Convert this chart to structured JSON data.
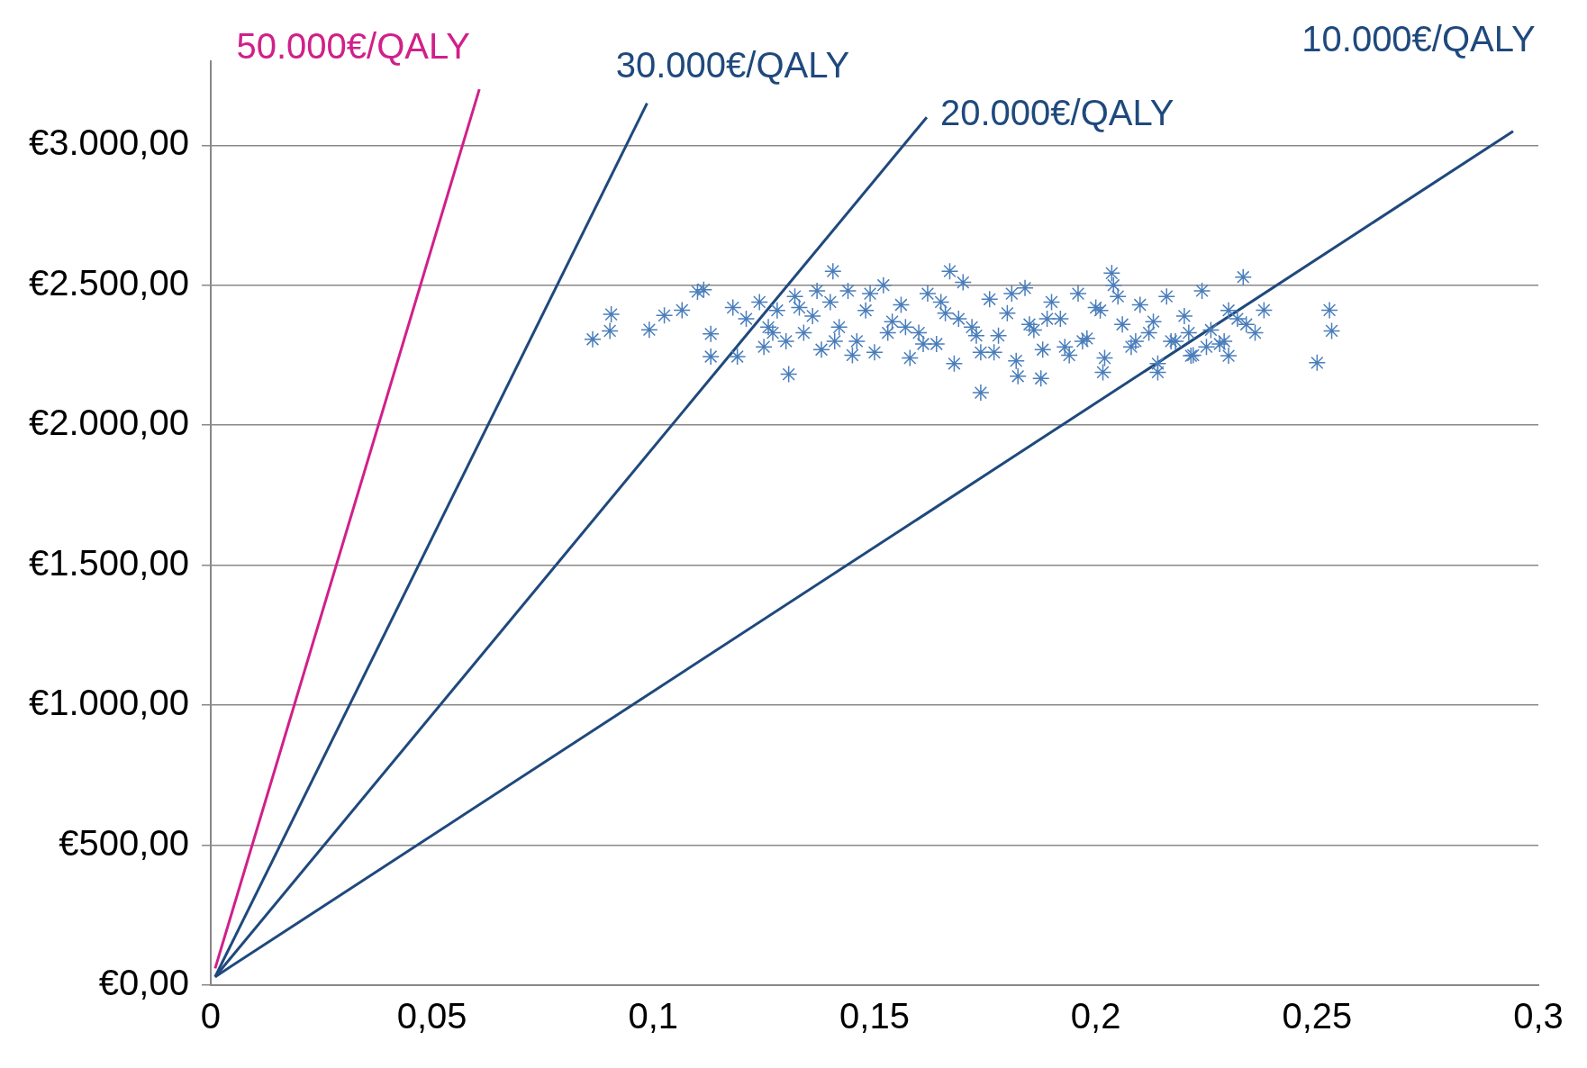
{
  "chart_data": {
    "type": "scatter",
    "xlim": [
      0,
      0.3
    ],
    "ylim": [
      0,
      3300
    ],
    "xticks": [
      0,
      {
        "value": 0.05,
        "label": "0,05"
      },
      {
        "value": 0.1,
        "label": "0,1"
      },
      {
        "value": 0.15,
        "label": "0,15"
      },
      {
        "value": 0.2,
        "label": "0,2"
      },
      {
        "value": 0.25,
        "label": "0,25"
      },
      {
        "value": 0.3,
        "label": "0,3"
      }
    ],
    "yticks": [
      {
        "value": 0,
        "label": "€0,00"
      },
      {
        "value": 500,
        "label": "€500,00"
      },
      {
        "value": 1000,
        "label": "€1.000,00"
      },
      {
        "value": 1500,
        "label": "€1.500,00"
      },
      {
        "value": 2000,
        "label": "€2.000,00"
      },
      {
        "value": 2500,
        "label": "€2.500,00"
      },
      {
        "value": 3000,
        "label": "€3.000,00"
      }
    ],
    "grid": "y",
    "legend": false,
    "series": [
      {
        "color": "#4a7ebb",
        "marker": "cross",
        "x": [
          0.0863,
          0.0905,
          0.0902,
          0.0991,
          0.1025,
          0.1065,
          0.11,
          0.1114,
          0.113,
          0.113,
          0.119,
          0.1306,
          0.174,
          0.1876,
          0.1824,
          0.2016,
          0.214,
          0.2215,
          0.23,
          0.2333,
          0.2528,
          0.2533,
          0.25,
          0.2036,
          0.1406,
          0.167,
          0.238,
          0.236,
          0.118,
          0.121,
          0.124,
          0.126,
          0.128,
          0.13,
          0.132,
          0.134,
          0.136,
          0.138,
          0.14,
          0.142,
          0.144,
          0.146,
          0.148,
          0.15,
          0.152,
          0.154,
          0.156,
          0.158,
          0.16,
          0.162,
          0.164,
          0.166,
          0.168,
          0.17,
          0.172,
          0.174,
          0.176,
          0.178,
          0.18,
          0.182,
          0.184,
          0.186,
          0.188,
          0.19,
          0.192,
          0.194,
          0.196,
          0.198,
          0.2,
          0.202,
          0.204,
          0.206,
          0.208,
          0.21,
          0.212,
          0.214,
          0.216,
          0.218,
          0.22,
          0.222,
          0.224,
          0.226,
          0.228,
          0.23,
          0.125,
          0.133,
          0.141,
          0.149,
          0.157,
          0.165,
          0.173,
          0.181,
          0.189,
          0.197,
          0.205,
          0.213,
          0.221,
          0.229,
          0.137,
          0.153,
          0.169,
          0.185,
          0.201,
          0.217,
          0.127,
          0.145,
          0.161,
          0.177,
          0.193,
          0.209,
          0.225,
          0.232,
          0.234
        ],
        "values": [
          2307,
          2396,
          2337,
          2341,
          2392,
          2411,
          2477,
          2484,
          2326,
          2245,
          2245,
          2182,
          2116,
          2167,
          2175,
          2189,
          2189,
          2248,
          2248,
          2529,
          2411,
          2337,
          2223,
          2543,
          2550,
          2550,
          2411,
          2330,
          2420,
          2380,
          2440,
          2350,
          2410,
          2300,
          2460,
          2330,
          2390,
          2270,
          2440,
          2350,
          2480,
          2300,
          2410,
          2260,
          2500,
          2370,
          2430,
          2240,
          2330,
          2470,
          2290,
          2400,
          2220,
          2510,
          2350,
          2260,
          2450,
          2320,
          2400,
          2230,
          2490,
          2340,
          2270,
          2440,
          2380,
          2250,
          2470,
          2310,
          2420,
          2240,
          2500,
          2360,
          2280,
          2430,
          2330,
          2220,
          2460,
          2300,
          2390,
          2250,
          2480,
          2340,
          2290,
          2410,
          2280,
          2420,
          2300,
          2470,
          2350,
          2440,
          2320,
          2470,
          2380,
          2300,
          2460,
          2370,
          2330,
          2300,
          2480,
          2330,
          2380,
          2360,
          2410,
          2300,
          2330,
          2250,
          2290,
          2260,
          2280,
          2300,
          2280,
          2380,
          2360
        ]
      },
      {
        "type": "line",
        "name": "50.000€/QALY",
        "color": "#d0208a",
        "marker": "none",
        "x": [
          0.001,
          0.0607
        ],
        "values": [
          60,
          3200
        ]
      },
      {
        "type": "line",
        "name": "30.000€/QALY",
        "color": "#1f497d",
        "marker": "none",
        "x": [
          0.001,
          0.0986
        ],
        "values": [
          30,
          3150
        ]
      },
      {
        "type": "line",
        "name": "20.000€/QALY",
        "color": "#1f497d",
        "marker": "none",
        "x": [
          0.001,
          0.1618
        ],
        "values": [
          30,
          3100
        ]
      },
      {
        "type": "line",
        "name": "10.000€/QALY",
        "color": "#1f497d",
        "marker": "none",
        "x": [
          0.001,
          0.2943
        ],
        "values": [
          30,
          3050
        ]
      }
    ]
  }
}
